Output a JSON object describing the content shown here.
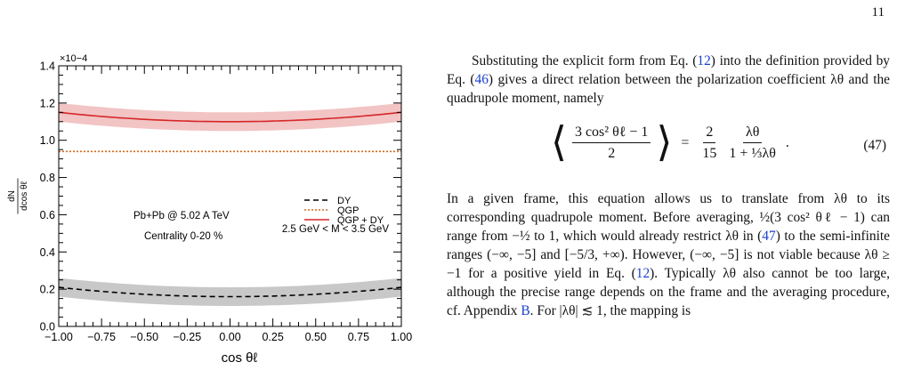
{
  "page_number": "11",
  "chart_data": {
    "type": "line",
    "x_axis": {
      "label": "cos θℓ",
      "range": [
        -1.0,
        1.0
      ],
      "ticks": [
        "−1.00",
        "−0.75",
        "−0.50",
        "−0.25",
        "0.00",
        "0.25",
        "0.50",
        "0.75",
        "1.00"
      ]
    },
    "y_axis": {
      "label_top": "dN",
      "label_bottom": "dcos θℓ",
      "multiplier": "×10−4",
      "range": [
        0.0,
        1.4
      ],
      "ticks": [
        "0.0",
        "0.2",
        "0.4",
        "0.6",
        "0.8",
        "1.0",
        "1.2",
        "1.4"
      ]
    },
    "annotations": {
      "system": "Pb+Pb @ 5.02 A TeV",
      "centrality": "Centrality 0-20 %",
      "mass_range": "2.5 GeV < M < 3.5 GeV"
    },
    "series": [
      {
        "name": "DY",
        "style": "dashed",
        "color": "#000000",
        "band_color": "#c8c8c8",
        "x": [
          -1.0,
          -0.75,
          -0.5,
          -0.25,
          0.0,
          0.25,
          0.5,
          0.75,
          1.0
        ],
        "y": [
          0.21,
          0.188,
          0.172,
          0.163,
          0.16,
          0.163,
          0.172,
          0.188,
          0.21
        ],
        "band_halfwidth": 0.05
      },
      {
        "name": "QGP",
        "style": "dotted",
        "color": "#d2691e",
        "x": [
          -1.0,
          0.0,
          1.0
        ],
        "y": [
          0.94,
          0.94,
          0.94
        ]
      },
      {
        "name": "QGP + DY",
        "style": "solid",
        "color": "#d62728",
        "band_color": "#f2c4c4",
        "x": [
          -1.0,
          -0.75,
          -0.5,
          -0.25,
          0.0,
          0.25,
          0.5,
          0.75,
          1.0
        ],
        "y": [
          1.15,
          1.128,
          1.112,
          1.103,
          1.1,
          1.103,
          1.112,
          1.128,
          1.15
        ],
        "band_halfwidth": 0.05
      }
    ]
  },
  "text": {
    "para1": [
      {
        "t": "Substituting the explicit form from Eq. ("
      },
      {
        "t": "12",
        "ref": true
      },
      {
        "t": ") into the definition provided by Eq. ("
      },
      {
        "t": "46",
        "ref": true
      },
      {
        "t": ") gives a direct relation between the polarization coefficient λθ and the quadrupole moment, namely"
      }
    ],
    "eq_lhs_num": "3 cos² θℓ − 1",
    "eq_lhs_den": "2",
    "eq_equals": "=",
    "eq_c_num": "2",
    "eq_c_den": "15",
    "eq_f_num": "λθ",
    "eq_f_den": "1 + ⅓λθ",
    "eq_period": ".",
    "eq_number": "(47)",
    "para2": [
      {
        "t": "In a given frame, this equation allows us to translate from λθ to its corresponding quadrupole moment. Before averaging, ½(3 cos² θℓ − 1) can range from −½ to 1, which would already restrict λθ in ("
      },
      {
        "t": "47",
        "ref": true
      },
      {
        "t": ") to the semi-infinite ranges (−∞, −5] and [−5/3, +∞). However, (−∞, −5] is not viable because λθ ≥ −1 for a positive yield in Eq. ("
      },
      {
        "t": "12",
        "ref": true
      },
      {
        "t": "). Typically λθ also cannot be too large, although the precise range depends on the frame and the averaging procedure, cf. Appendix "
      },
      {
        "t": "B",
        "ref": true
      },
      {
        "t": ". For |λθ| ≲ 1, the mapping is"
      }
    ]
  }
}
